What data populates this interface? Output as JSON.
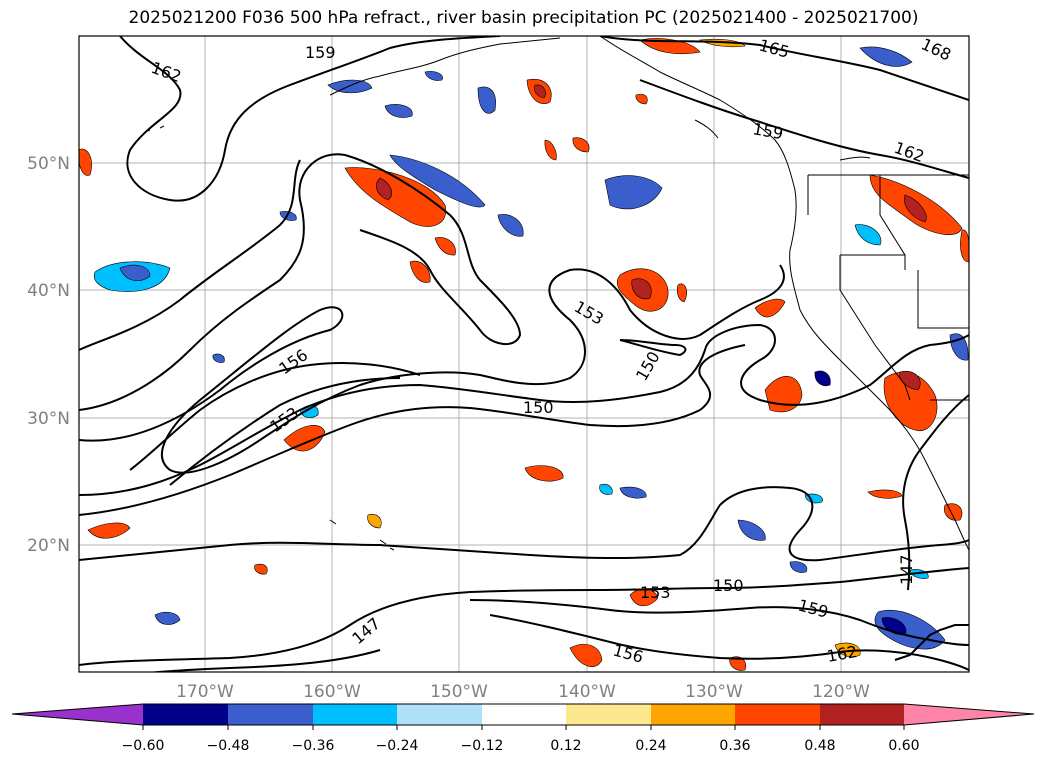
{
  "title": "2025021200 F036 500 hPa refract., river basin precipitation PC (2025021400 - 2025021700)",
  "map": {
    "lat_labels": [
      "50°N",
      "40°N",
      "30°N",
      "20°N"
    ],
    "lon_labels": [
      "170°W",
      "160°W",
      "150°W",
      "140°W",
      "130°W",
      "120°W"
    ],
    "contour_labels": [
      "159",
      "162",
      "165",
      "168",
      "159",
      "162",
      "153",
      "156",
      "150",
      "150",
      "153",
      "150",
      "147",
      "159",
      "162",
      "156",
      "153",
      "147"
    ]
  },
  "colorbar": {
    "ticks": [
      "−0.60",
      "−0.48",
      "−0.36",
      "−0.24",
      "−0.12",
      "0.12",
      "0.24",
      "0.36",
      "0.48",
      "0.60"
    ],
    "colors": {
      "below": "#9932cc",
      "b1": "#00008b",
      "b2": "#3a5fcd",
      "b3": "#00bfff",
      "b4": "#afe0fa",
      "b5": "#ffffff",
      "b6": "#fde78f",
      "b7": "#ffa500",
      "b8": "#ff4500",
      "b9": "#b22222",
      "above": "#ff85a8"
    }
  }
}
